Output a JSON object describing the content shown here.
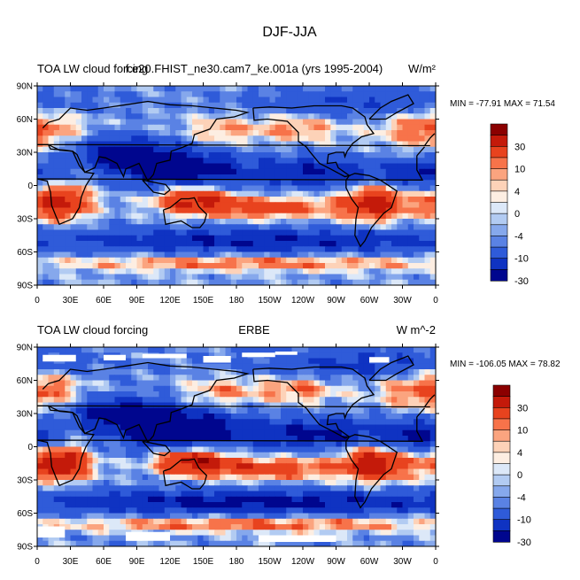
{
  "figure_title": "DJF-JJA",
  "chart_data": [
    {
      "type": "heatmap",
      "panel": "top",
      "left_title": "TOA LW cloud forcing",
      "center_title": "f.e20.FHIST_ne30.cam7_ke.001a (yrs 1995-2004)",
      "units": "W/m²",
      "stats": "MIN = -77.91 MAX =  71.54",
      "xtick_labels": [
        "0",
        "30E",
        "60E",
        "90E",
        "120E",
        "150E",
        "180",
        "150W",
        "120W",
        "90W",
        "60W",
        "30W",
        "0"
      ],
      "ytick_labels": [
        "90N",
        "60N",
        "30N",
        "0",
        "30S",
        "60S",
        "90S"
      ],
      "colorbar_labels": [
        "30",
        "10",
        "4",
        "0",
        "-4",
        "-10",
        "-30"
      ],
      "colorbar_colors": [
        "#8b0000",
        "#c41a0a",
        "#e8431e",
        "#f7734a",
        "#fba47f",
        "#fdd2b8",
        "#fdeee2",
        "#dce8f8",
        "#b2cbf2",
        "#86a8ec",
        "#5a82e4",
        "#2f5bd9",
        "#0f33c2",
        "#00068e"
      ]
    },
    {
      "type": "heatmap",
      "panel": "bottom",
      "left_title": "TOA LW cloud forcing",
      "center_title": "ERBE",
      "units": "W m^-2",
      "stats": "MIN = -106.05 MAX =  78.82",
      "xtick_labels": [
        "0",
        "30E",
        "60E",
        "90E",
        "120E",
        "150E",
        "180",
        "150W",
        "120W",
        "90W",
        "60W",
        "30W",
        "0"
      ],
      "ytick_labels": [
        "90N",
        "60N",
        "30N",
        "0",
        "30S",
        "60S",
        "90S"
      ],
      "colorbar_labels": [
        "30",
        "10",
        "4",
        "0",
        "-4",
        "-10",
        "-30"
      ],
      "colorbar_colors": [
        "#8b0000",
        "#c41a0a",
        "#e8431e",
        "#f7734a",
        "#fba47f",
        "#fdd2b8",
        "#fdeee2",
        "#dce8f8",
        "#b2cbf2",
        "#86a8ec",
        "#5a82e4",
        "#2f5bd9",
        "#0f33c2",
        "#00068e"
      ]
    }
  ]
}
